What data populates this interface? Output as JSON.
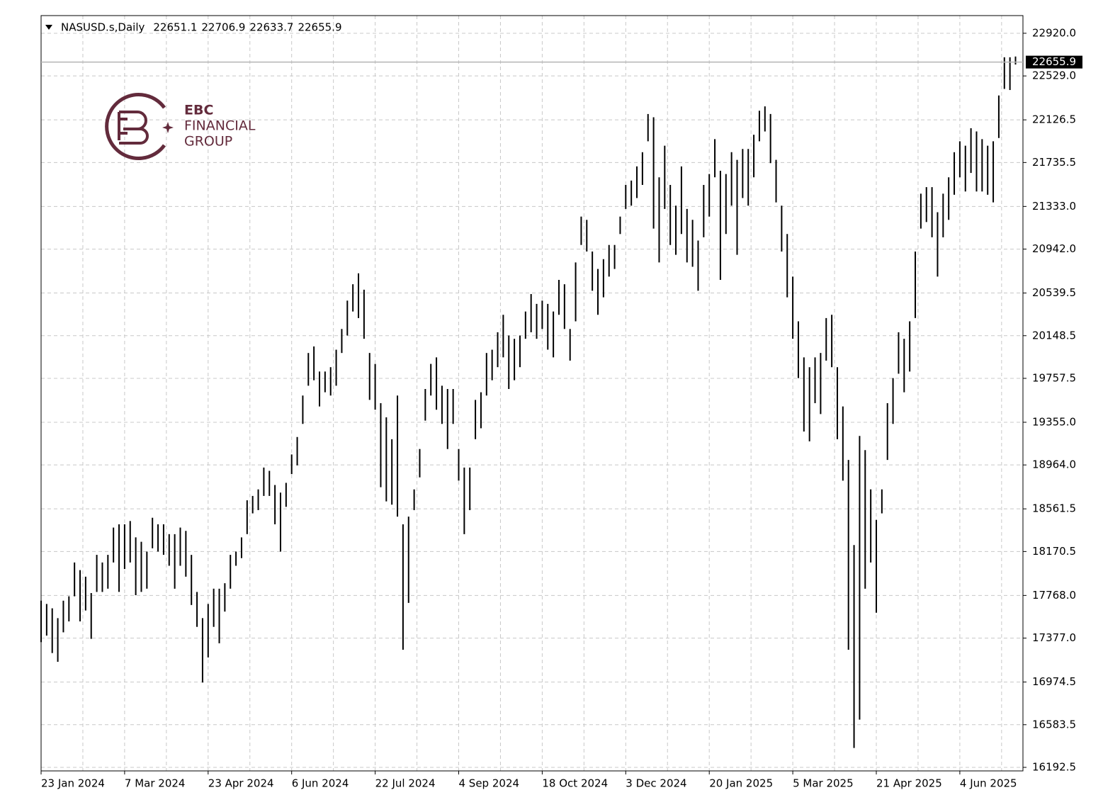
{
  "chart_data": {
    "type": "hlbar",
    "header": {
      "symbol": "NASUSD.s,Daily",
      "open": 22651.1,
      "high": 22706.9,
      "low": 22633.7,
      "close": 22655.9
    },
    "watermark": {
      "line1": "EBC",
      "line2": "FINANCIAL",
      "line3": "GROUP"
    },
    "color": "#000000",
    "grid": true,
    "ylim": [
      16160,
      23082
    ],
    "yticks": [
      {
        "value": 22920,
        "label": "22920.0"
      },
      {
        "value": 22529,
        "label": "22529.0"
      },
      {
        "value": 22126.5,
        "label": "22126.5"
      },
      {
        "value": 21735.5,
        "label": "21735.5"
      },
      {
        "value": 21333,
        "label": "21333.0"
      },
      {
        "value": 20942,
        "label": "20942.0"
      },
      {
        "value": 20539.5,
        "label": "20539.5"
      },
      {
        "value": 20148.5,
        "label": "20148.5"
      },
      {
        "value": 19757.5,
        "label": "19757.5"
      },
      {
        "value": 19355,
        "label": "19355.0"
      },
      {
        "value": 18964,
        "label": "18964.0"
      },
      {
        "value": 18561.5,
        "label": "18561.5"
      },
      {
        "value": 18170.5,
        "label": "18170.5"
      },
      {
        "value": 17768,
        "label": "17768.0"
      },
      {
        "value": 17377,
        "label": "17377.0"
      },
      {
        "value": 16974.5,
        "label": "16974.5"
      },
      {
        "value": 16583.5,
        "label": "16583.5"
      },
      {
        "value": 16192.5,
        "label": "16192.5"
      }
    ],
    "categories": [
      "23 Jan 2024",
      null,
      null,
      null,
      null,
      null,
      null,
      null,
      null,
      null,
      null,
      null,
      null,
      null,
      null,
      "7 Mar 2024",
      null,
      null,
      null,
      null,
      null,
      null,
      null,
      null,
      null,
      null,
      null,
      null,
      null,
      null,
      "23 Apr 2024",
      null,
      null,
      null,
      null,
      null,
      null,
      null,
      null,
      null,
      null,
      null,
      null,
      null,
      null,
      "6 Jun 2024",
      null,
      null,
      null,
      null,
      null,
      null,
      null,
      null,
      null,
      null,
      null,
      null,
      null,
      null,
      "22 Jul 2024",
      null,
      null,
      null,
      null,
      null,
      null,
      null,
      null,
      null,
      null,
      null,
      null,
      null,
      null,
      "4 Sep 2024",
      null,
      null,
      null,
      null,
      null,
      null,
      null,
      null,
      null,
      null,
      null,
      null,
      null,
      null,
      "18 Oct 2024",
      null,
      null,
      null,
      null,
      null,
      null,
      null,
      null,
      null,
      null,
      null,
      null,
      null,
      null,
      "3 Dec 2024",
      null,
      null,
      null,
      null,
      null,
      null,
      null,
      null,
      null,
      null,
      null,
      null,
      null,
      null,
      "20 Jan 2025",
      null,
      null,
      null,
      null,
      null,
      null,
      null,
      null,
      null,
      null,
      null,
      null,
      null,
      null,
      "5 Mar 2025",
      null,
      null,
      null,
      null,
      null,
      null,
      null,
      null,
      null,
      null,
      null,
      null,
      null,
      null,
      "21 Apr 2025",
      null,
      null,
      null,
      null,
      null,
      null,
      null,
      null,
      null,
      null,
      null,
      null,
      null,
      null,
      "4 Jun 2025",
      null,
      null,
      null,
      null,
      null,
      null,
      null,
      null,
      null,
      null
    ],
    "high": [
      17720,
      17690,
      17650,
      17560,
      17720,
      17760,
      18070,
      18000,
      17940,
      17790,
      18140,
      18070,
      18140,
      18390,
      18420,
      18420,
      18450,
      18300,
      18260,
      18170,
      18480,
      18420,
      18420,
      18330,
      18330,
      18390,
      18360,
      18140,
      17800,
      17560,
      17690,
      17830,
      17830,
      17880,
      18140,
      18170,
      18300,
      18640,
      18680,
      18740,
      18940,
      18910,
      18780,
      18710,
      18800,
      19060,
      19220,
      19600,
      19990,
      20050,
      19820,
      19820,
      19860,
      20020,
      20210,
      20470,
      20620,
      20720,
      20570,
      19990,
      19890,
      19530,
      19400,
      19200,
      19600,
      18420,
      18490,
      18740,
      19110,
      19660,
      19890,
      19950,
      19690,
      19660,
      19660,
      19110,
      18940,
      18940,
      19560,
      19630,
      19990,
      20020,
      20180,
      20340,
      20150,
      20120,
      20150,
      20370,
      20530,
      20440,
      20470,
      20440,
      20370,
      20660,
      20620,
      20210,
      20820,
      21240,
      21210,
      20920,
      20760,
      20850,
      20980,
      20980,
      21240,
      21530,
      21570,
      21700,
      21830,
      22180,
      22150,
      21600,
      21890,
      21530,
      21340,
      21700,
      21310,
      21210,
      21020,
      21530,
      21630,
      21950,
      21660,
      21630,
      21830,
      21760,
      21860,
      21860,
      21990,
      22210,
      22250,
      22180,
      21760,
      21340,
      21080,
      20690,
      20280,
      19950,
      19860,
      19950,
      19990,
      20310,
      20340,
      19860,
      19500,
      19010,
      18230,
      19230,
      19100,
      18740,
      18460,
      18740,
      19530,
      19760,
      20180,
      20120,
      20280,
      20920,
      21450,
      21510,
      21510,
      21280,
      21450,
      21600,
      21830,
      21930,
      21890,
      22050,
      22020,
      21950,
      21890,
      21930,
      22350,
      22700,
      22700,
      22706.9
    ],
    "low": [
      17340,
      17400,
      17240,
      17160,
      17430,
      17530,
      17760,
      17530,
      17630,
      17370,
      17800,
      17800,
      17830,
      18070,
      17800,
      18010,
      18070,
      17770,
      17800,
      17830,
      18200,
      18170,
      18140,
      18040,
      17830,
      18040,
      17940,
      17680,
      17480,
      16970,
      17200,
      17480,
      17330,
      17620,
      17830,
      18040,
      18110,
      18330,
      18520,
      18550,
      18680,
      18680,
      18420,
      18170,
      18580,
      18880,
      18960,
      19340,
      19690,
      19740,
      19500,
      19630,
      19600,
      19690,
      19990,
      20150,
      20370,
      20310,
      20120,
      19560,
      19470,
      18760,
      18630,
      18600,
      18490,
      17270,
      17700,
      18550,
      18850,
      19370,
      19600,
      19470,
      19340,
      19110,
      19340,
      18820,
      18330,
      18550,
      19200,
      19300,
      19600,
      19740,
      19860,
      19950,
      19660,
      19740,
      19860,
      20120,
      20180,
      20120,
      20210,
      20020,
      19950,
      20340,
      20210,
      19920,
      20280,
      20980,
      20920,
      20560,
      20340,
      20500,
      20690,
      20760,
      21080,
      21310,
      21340,
      21410,
      21530,
      21930,
      21130,
      20820,
      21310,
      20980,
      20890,
      21080,
      20820,
      20780,
      20560,
      21050,
      21240,
      21600,
      20660,
      21080,
      21340,
      20890,
      21410,
      21340,
      21600,
      21930,
      22020,
      21730,
      21370,
      20920,
      20500,
      20120,
      19760,
      19270,
      19180,
      19530,
      19430,
      19920,
      19860,
      19200,
      18820,
      17270,
      16370,
      16630,
      17830,
      18070,
      17610,
      18520,
      19010,
      19340,
      19800,
      19630,
      19820,
      20310,
      21130,
      21190,
      21050,
      20690,
      21050,
      21210,
      21440,
      21600,
      21470,
      21640,
      21470,
      21470,
      21440,
      21370,
      21960,
      22410,
      22400,
      22633.7
    ]
  }
}
